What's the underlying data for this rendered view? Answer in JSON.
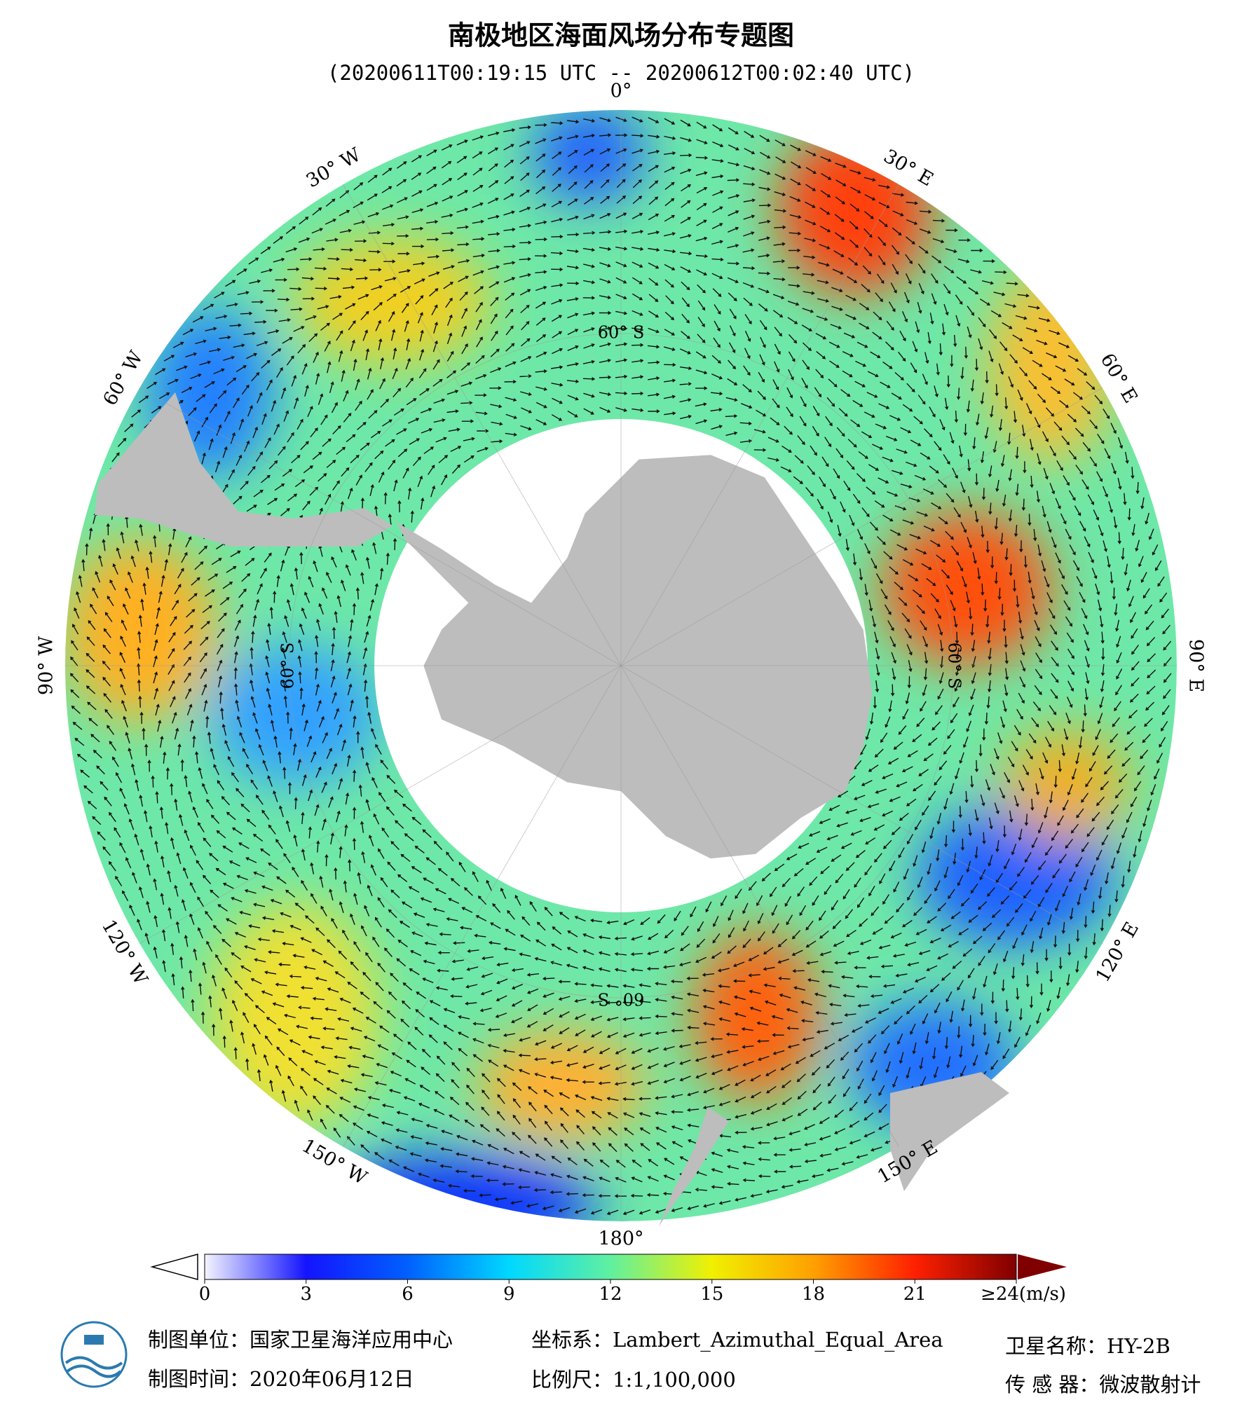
{
  "title": "南极地区海面风场分布专题图",
  "subtitle": "(20200611T00:19:15 UTC -- 20200612T00:02:40 UTC)",
  "longitude_labels": [
    "0°",
    "30° E",
    "60° E",
    "90° E",
    "120° E",
    "150° E",
    "180°",
    "150° W",
    "120° W",
    "90° W",
    "60° W",
    "30° W"
  ],
  "latitude_labels": [
    "60° S",
    "60° S",
    "60° S",
    "60° S"
  ],
  "colorbar": {
    "lim": [
      0,
      24
    ],
    "ticks": [
      0,
      3,
      6,
      9,
      12,
      15,
      18,
      21,
      {
        "value": 24,
        "label": "≥24(m/s)"
      }
    ],
    "colors": [
      "#f4f4ff",
      "#1414ff",
      "#0060ff",
      "#00d8ff",
      "#60f0a0",
      "#f0f000",
      "#ffa000",
      "#ff2000",
      "#800000"
    ]
  },
  "footer": {
    "unit": "制图单位：国家卫星海洋应用中心",
    "date": "制图时间：2020年06月12日",
    "crs": "坐标系：Lambert_Azimuthal_Equal_Area",
    "scale": "比例尺：1:1,100,000",
    "satellite": "卫星名称：HY-2B",
    "sensor": "传 感 器：微波散射计"
  }
}
